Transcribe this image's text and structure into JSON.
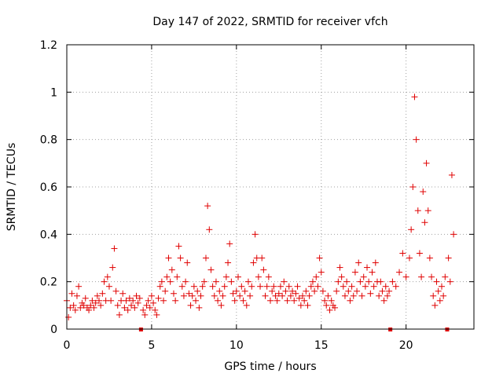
{
  "chart_data": {
    "type": "scatter",
    "title": "Day 147 of 2022, SRMTID for receiver vfch",
    "xlabel": "GPS time / hours",
    "ylabel": "SRMTID / TECUs",
    "xlim": [
      0,
      24
    ],
    "ylim": [
      0,
      1.2
    ],
    "xticks": [
      0,
      5,
      10,
      15,
      20
    ],
    "xtick_labels": [
      "0",
      "5",
      "10",
      "15",
      "20"
    ],
    "yticks": [
      0,
      0.2,
      0.4,
      0.6,
      0.8,
      1.0,
      1.2
    ],
    "ytick_labels": [
      "0",
      "0.2",
      "0.4",
      "0.6",
      "0.8",
      "1",
      "1.2"
    ],
    "grid": true,
    "marker": "+",
    "series_color": "#e00000",
    "gap_markers_x": [
      4.35,
      19.05,
      22.4
    ],
    "series": [
      {
        "name": "SRMTID",
        "x": [
          0.0,
          0.1,
          0.2,
          0.3,
          0.4,
          0.5,
          0.6,
          0.7,
          0.8,
          0.9,
          1.0,
          1.1,
          1.2,
          1.3,
          1.4,
          1.5,
          1.6,
          1.7,
          1.8,
          1.9,
          2.0,
          2.1,
          2.2,
          2.3,
          2.4,
          2.5,
          2.6,
          2.7,
          2.8,
          2.9,
          3.0,
          3.1,
          3.2,
          3.3,
          3.4,
          3.5,
          3.6,
          3.7,
          3.8,
          3.9,
          4.0,
          4.1,
          4.2,
          4.3,
          4.5,
          4.6,
          4.7,
          4.8,
          4.9,
          5.0,
          5.1,
          5.2,
          5.3,
          5.4,
          5.5,
          5.6,
          5.7,
          5.8,
          5.9,
          6.0,
          6.1,
          6.2,
          6.3,
          6.4,
          6.5,
          6.6,
          6.7,
          6.8,
          6.9,
          7.0,
          7.1,
          7.2,
          7.3,
          7.4,
          7.5,
          7.6,
          7.7,
          7.8,
          7.9,
          8.0,
          8.1,
          8.2,
          8.3,
          8.4,
          8.5,
          8.6,
          8.7,
          8.8,
          8.9,
          9.0,
          9.1,
          9.2,
          9.3,
          9.4,
          9.5,
          9.6,
          9.7,
          9.8,
          9.9,
          10.0,
          10.1,
          10.2,
          10.3,
          10.4,
          10.5,
          10.6,
          10.7,
          10.8,
          10.9,
          11.0,
          11.1,
          11.2,
          11.3,
          11.4,
          11.5,
          11.6,
          11.7,
          11.8,
          11.9,
          12.0,
          12.1,
          12.2,
          12.3,
          12.4,
          12.5,
          12.6,
          12.7,
          12.8,
          12.9,
          13.0,
          13.1,
          13.2,
          13.3,
          13.4,
          13.5,
          13.6,
          13.7,
          13.8,
          13.9,
          14.0,
          14.1,
          14.2,
          14.3,
          14.4,
          14.5,
          14.6,
          14.7,
          14.8,
          14.9,
          15.0,
          15.1,
          15.2,
          15.3,
          15.4,
          15.5,
          15.6,
          15.7,
          15.8,
          15.9,
          16.0,
          16.1,
          16.2,
          16.3,
          16.4,
          16.5,
          16.6,
          16.7,
          16.8,
          16.9,
          17.0,
          17.1,
          17.2,
          17.3,
          17.4,
          17.5,
          17.6,
          17.7,
          17.8,
          17.9,
          18.0,
          18.1,
          18.2,
          18.3,
          18.4,
          18.5,
          18.6,
          18.7,
          18.8,
          18.9,
          19.0,
          19.2,
          19.4,
          19.6,
          19.8,
          20.0,
          20.2,
          20.3,
          20.4,
          20.5,
          20.6,
          20.7,
          20.8,
          20.9,
          21.0,
          21.1,
          21.2,
          21.3,
          21.4,
          21.5,
          21.6,
          21.7,
          21.8,
          21.9,
          22.0,
          22.1,
          22.2,
          22.3,
          22.5,
          22.6,
          22.7,
          22.8
        ],
        "y": [
          0.12,
          0.05,
          0.09,
          0.15,
          0.1,
          0.08,
          0.14,
          0.18,
          0.09,
          0.11,
          0.1,
          0.13,
          0.09,
          0.08,
          0.1,
          0.12,
          0.09,
          0.11,
          0.14,
          0.12,
          0.1,
          0.15,
          0.2,
          0.12,
          0.22,
          0.18,
          0.12,
          0.26,
          0.34,
          0.16,
          0.1,
          0.06,
          0.12,
          0.15,
          0.09,
          0.12,
          0.08,
          0.13,
          0.1,
          0.12,
          0.09,
          0.14,
          0.11,
          0.13,
          0.08,
          0.06,
          0.1,
          0.12,
          0.09,
          0.14,
          0.11,
          0.08,
          0.06,
          0.13,
          0.18,
          0.2,
          0.12,
          0.16,
          0.22,
          0.3,
          0.2,
          0.25,
          0.15,
          0.12,
          0.22,
          0.35,
          0.3,
          0.18,
          0.14,
          0.2,
          0.28,
          0.15,
          0.1,
          0.14,
          0.18,
          0.12,
          0.16,
          0.09,
          0.14,
          0.18,
          0.2,
          0.3,
          0.52,
          0.42,
          0.25,
          0.18,
          0.14,
          0.2,
          0.12,
          0.16,
          0.1,
          0.14,
          0.18,
          0.22,
          0.28,
          0.36,
          0.2,
          0.15,
          0.12,
          0.16,
          0.22,
          0.14,
          0.18,
          0.12,
          0.16,
          0.1,
          0.2,
          0.14,
          0.18,
          0.28,
          0.4,
          0.3,
          0.22,
          0.18,
          0.3,
          0.25,
          0.14,
          0.18,
          0.22,
          0.12,
          0.16,
          0.18,
          0.14,
          0.12,
          0.15,
          0.18,
          0.14,
          0.2,
          0.16,
          0.12,
          0.18,
          0.14,
          0.16,
          0.12,
          0.15,
          0.18,
          0.13,
          0.1,
          0.14,
          0.12,
          0.16,
          0.1,
          0.14,
          0.18,
          0.2,
          0.16,
          0.22,
          0.18,
          0.3,
          0.24,
          0.16,
          0.12,
          0.1,
          0.14,
          0.08,
          0.12,
          0.1,
          0.09,
          0.16,
          0.2,
          0.26,
          0.22,
          0.18,
          0.14,
          0.2,
          0.16,
          0.12,
          0.18,
          0.14,
          0.24,
          0.16,
          0.28,
          0.2,
          0.14,
          0.22,
          0.18,
          0.26,
          0.2,
          0.15,
          0.24,
          0.18,
          0.28,
          0.2,
          0.14,
          0.2,
          0.16,
          0.12,
          0.18,
          0.14,
          0.16,
          0.2,
          0.18,
          0.24,
          0.32,
          0.22,
          0.3,
          0.42,
          0.6,
          0.98,
          0.8,
          0.5,
          0.32,
          0.22,
          0.58,
          0.45,
          0.7,
          0.5,
          0.3,
          0.22,
          0.14,
          0.1,
          0.2,
          0.16,
          0.12,
          0.18,
          0.14,
          0.22,
          0.3,
          0.2,
          0.65,
          0.4
        ]
      }
    ]
  }
}
